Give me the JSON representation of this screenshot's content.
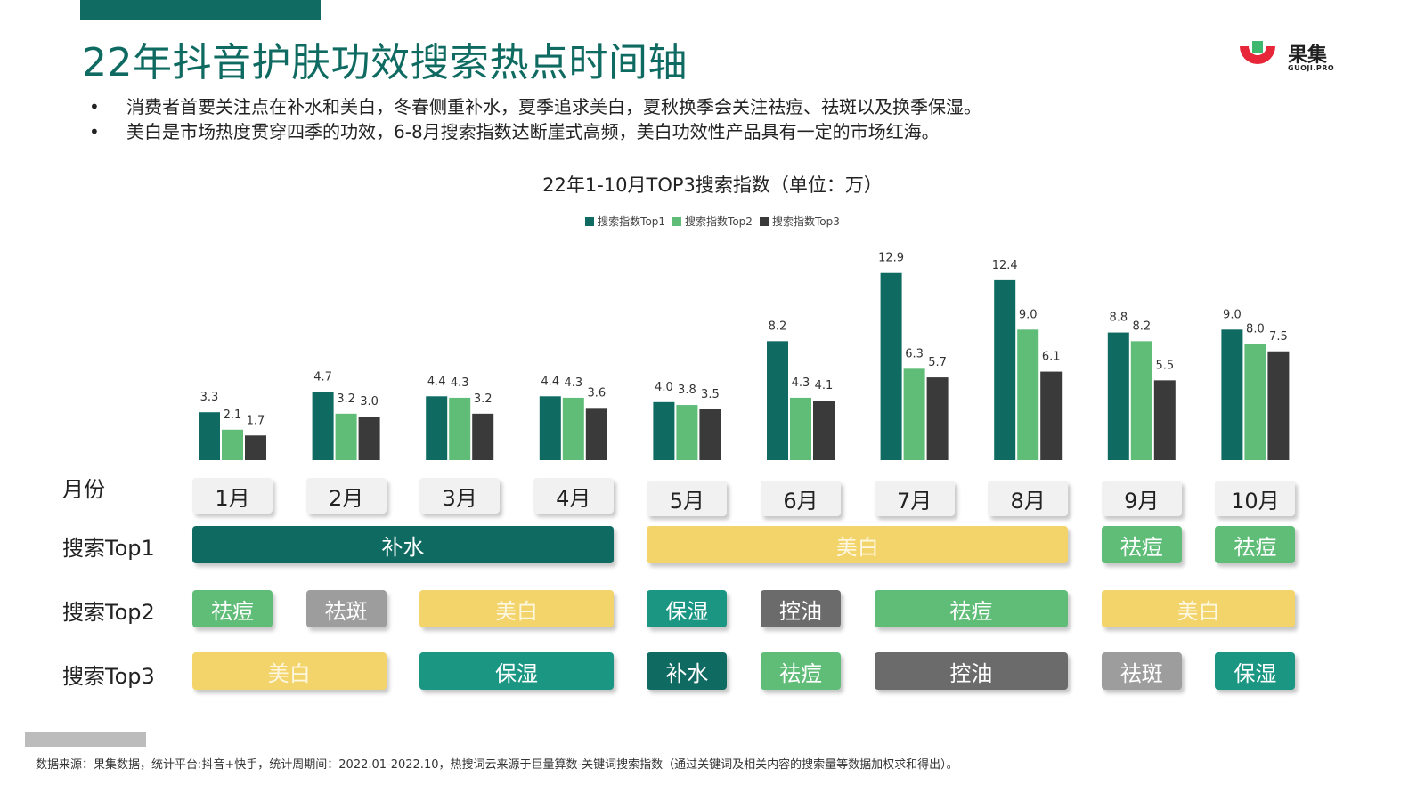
{
  "title": "22年抖音护肤功效搜索热点时间轴",
  "logo": {
    "cn": "果集",
    "en": "GUOJI.PRO"
  },
  "bullets": [
    "消费者首要关注点在补水和美白，冬春侧重补水，夏季追求美白，夏秋换季会关注祛痘、祛斑以及换季保湿。",
    "美白是市场热度贯穿四季的功效，6-8月搜索指数达断崖式高频，美白功效性产品具有一定的市场红海。"
  ],
  "colors": {
    "top1": "#0f6b62",
    "top2": "#5fbd78",
    "top3": "#3a3a3a",
    "title": "#0f6b62"
  },
  "chart_data": {
    "type": "bar",
    "title": "22年1-10月TOP3搜索指数（单位：万）",
    "categories": [
      "1月",
      "2月",
      "3月",
      "4月",
      "5月",
      "6月",
      "7月",
      "8月",
      "9月",
      "10月"
    ],
    "series": [
      {
        "name": "搜索指数Top1",
        "values": [
          3.3,
          4.7,
          4.4,
          4.4,
          4.0,
          8.2,
          12.9,
          12.4,
          8.8,
          9.0
        ]
      },
      {
        "name": "搜索指数Top2",
        "values": [
          2.1,
          3.2,
          4.3,
          4.3,
          3.8,
          4.3,
          6.3,
          9.0,
          8.2,
          8.0
        ]
      },
      {
        "name": "搜索指数Top3",
        "values": [
          1.7,
          3.0,
          3.2,
          3.6,
          3.5,
          4.1,
          5.7,
          6.1,
          5.5,
          7.5
        ]
      }
    ],
    "legend_position": "top-center",
    "grid": false
  },
  "row_labels": {
    "month": "月份",
    "top1": "搜索Top1",
    "top2": "搜索Top2",
    "top3": "搜索Top3"
  },
  "timeline": {
    "top1": [
      {
        "label": "补水",
        "start": 0,
        "end": 3,
        "color": "c-bushui"
      },
      {
        "label": "美白",
        "start": 4,
        "end": 7,
        "color": "c-meibai"
      },
      {
        "label": "祛痘",
        "start": 8,
        "end": 8,
        "color": "c-qudou"
      },
      {
        "label": "祛痘",
        "start": 9,
        "end": 9,
        "color": "c-qudou"
      }
    ],
    "top2": [
      {
        "label": "祛痘",
        "start": 0,
        "end": 0,
        "color": "c-qudou"
      },
      {
        "label": "祛斑",
        "start": 1,
        "end": 1,
        "color": "c-quban"
      },
      {
        "label": "美白",
        "start": 2,
        "end": 3,
        "color": "c-meibai"
      },
      {
        "label": "保湿",
        "start": 4,
        "end": 4,
        "color": "c-baohsi"
      },
      {
        "label": "控油",
        "start": 5,
        "end": 5,
        "color": "c-kongyou"
      },
      {
        "label": "祛痘",
        "start": 6,
        "end": 7,
        "color": "c-qudou"
      },
      {
        "label": "美白",
        "start": 8,
        "end": 9,
        "color": "c-meibai"
      }
    ],
    "top3": [
      {
        "label": "美白",
        "start": 0,
        "end": 1,
        "color": "c-meibai"
      },
      {
        "label": "保湿",
        "start": 2,
        "end": 3,
        "color": "c-baohsi"
      },
      {
        "label": "补水",
        "start": 4,
        "end": 4,
        "color": "c-bushui"
      },
      {
        "label": "祛痘",
        "start": 5,
        "end": 5,
        "color": "c-qudou"
      },
      {
        "label": "控油",
        "start": 6,
        "end": 7,
        "color": "c-kongyou"
      },
      {
        "label": "祛斑",
        "start": 8,
        "end": 8,
        "color": "c-quban"
      },
      {
        "label": "保湿",
        "start": 9,
        "end": 9,
        "color": "c-baohsi"
      }
    ]
  },
  "footer": "数据来源：果集数据，统计平台:抖音+快手，统计周期间：2022.01-2022.10，热搜词云来源于巨量算数-关键词搜索指数（通过关键词及相关内容的搜索量等数据加权求和得出）。"
}
